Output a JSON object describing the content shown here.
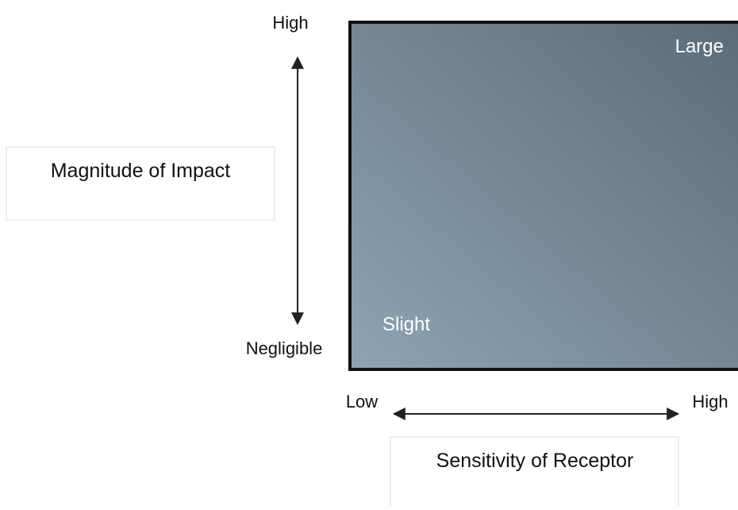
{
  "y_axis": {
    "top_label": "High",
    "bottom_label": "Negligible",
    "title": "Magnitude of Impact"
  },
  "x_axis": {
    "left_label": "Low",
    "right_label": "High",
    "title": "Sensitivity of Receptor"
  },
  "matrix": {
    "top_right_label": "Large",
    "bottom_left_label": "Slight"
  }
}
